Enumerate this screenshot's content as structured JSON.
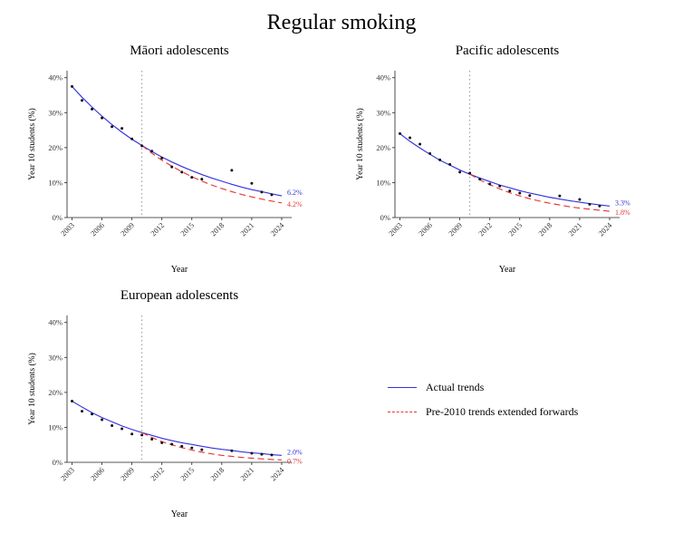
{
  "title": "Regular smoking",
  "legend": {
    "actual": "Actual trends",
    "projected": "Pre-2010 trends extended forwards"
  },
  "colors": {
    "actual": "#3333dd",
    "projected": "#e83535",
    "observed": "#111111",
    "vline": "#888888",
    "axis": "#222222",
    "tick_text": "#333333"
  },
  "axes": {
    "xlabel": "Year",
    "ylabel": "Year 10 students (%)",
    "xticks": [
      2003,
      2006,
      2009,
      2012,
      2015,
      2018,
      2021,
      2024
    ],
    "yticks": [
      0,
      10,
      20,
      30,
      40
    ],
    "ytick_labels": [
      "0%",
      "10%",
      "20%",
      "30%",
      "40%"
    ],
    "xlim": [
      2002.5,
      2025
    ],
    "ylim": [
      0,
      42
    ],
    "vline_x": 2010
  },
  "chart_data": [
    {
      "type": "line",
      "title": "Māori adolescents",
      "series": [
        {
          "name": "actual",
          "kind": "line",
          "x": [
            2003,
            2004,
            2005,
            2006,
            2007,
            2008,
            2009,
            2010,
            2011,
            2012,
            2013,
            2014,
            2015,
            2016,
            2017,
            2018,
            2019,
            2020,
            2021,
            2022,
            2023,
            2024
          ],
          "values": [
            37.5,
            34.4,
            31.6,
            29.0,
            26.6,
            24.4,
            22.4,
            20.6,
            18.9,
            17.3,
            15.9,
            14.6,
            13.4,
            12.3,
            11.3,
            10.4,
            9.5,
            8.7,
            8.0,
            7.4,
            6.8,
            6.2
          ]
        },
        {
          "name": "projected",
          "kind": "line",
          "x": [
            2010,
            2011,
            2012,
            2013,
            2014,
            2015,
            2016,
            2017,
            2018,
            2019,
            2020,
            2021,
            2022,
            2023,
            2024
          ],
          "values": [
            20.6,
            18.4,
            16.4,
            14.7,
            13.1,
            11.7,
            10.4,
            9.3,
            8.3,
            7.4,
            6.6,
            5.9,
            5.3,
            4.7,
            4.2
          ]
        },
        {
          "name": "observed",
          "kind": "scatter",
          "x": [
            2003,
            2004,
            2005,
            2006,
            2007,
            2008,
            2009,
            2010,
            2011,
            2012,
            2013,
            2014,
            2015,
            2016,
            2019,
            2021,
            2022,
            2023
          ],
          "values": [
            37.5,
            33.5,
            31.0,
            28.5,
            26.0,
            25.5,
            22.5,
            20.5,
            19.0,
            17.0,
            14.5,
            13.0,
            11.5,
            11.0,
            13.5,
            9.8,
            7.3,
            6.5
          ]
        }
      ],
      "end_labels": [
        {
          "text": "6.2%",
          "series": "actual",
          "y": 6.2
        },
        {
          "text": "4.2%",
          "series": "projected",
          "y": 4.2
        }
      ]
    },
    {
      "type": "line",
      "title": "Pacific adolescents",
      "series": [
        {
          "name": "actual",
          "kind": "line",
          "x": [
            2003,
            2004,
            2005,
            2006,
            2007,
            2008,
            2009,
            2010,
            2011,
            2012,
            2013,
            2014,
            2015,
            2016,
            2017,
            2018,
            2019,
            2020,
            2021,
            2022,
            2023,
            2024
          ],
          "values": [
            24.0,
            21.8,
            19.9,
            18.1,
            16.4,
            15.0,
            13.6,
            12.4,
            11.3,
            10.3,
            9.3,
            8.5,
            7.7,
            7.0,
            6.4,
            5.8,
            5.3,
            4.8,
            4.4,
            4.0,
            3.6,
            3.3
          ]
        },
        {
          "name": "projected",
          "kind": "line",
          "x": [
            2010,
            2011,
            2012,
            2013,
            2014,
            2015,
            2016,
            2017,
            2018,
            2019,
            2020,
            2021,
            2022,
            2023,
            2024
          ],
          "values": [
            12.4,
            10.8,
            9.4,
            8.2,
            7.1,
            6.2,
            5.4,
            4.7,
            4.1,
            3.6,
            3.1,
            2.7,
            2.4,
            2.1,
            1.8
          ]
        },
        {
          "name": "observed",
          "kind": "scatter",
          "x": [
            2003,
            2004,
            2005,
            2006,
            2007,
            2008,
            2009,
            2010,
            2011,
            2012,
            2013,
            2014,
            2015,
            2016,
            2019,
            2021,
            2022,
            2023
          ],
          "values": [
            24.0,
            22.8,
            21.0,
            18.3,
            16.5,
            15.2,
            13.0,
            12.7,
            11.0,
            9.6,
            9.0,
            7.6,
            7.0,
            6.3,
            6.2,
            5.2,
            3.8,
            3.3
          ]
        }
      ],
      "end_labels": [
        {
          "text": "3.3%",
          "series": "actual",
          "y": 3.3
        },
        {
          "text": "1.8%",
          "series": "projected",
          "y": 1.8
        }
      ]
    },
    {
      "type": "line",
      "title": "European adolescents",
      "series": [
        {
          "name": "actual",
          "kind": "line",
          "x": [
            2003,
            2004,
            2005,
            2006,
            2007,
            2008,
            2009,
            2010,
            2011,
            2012,
            2013,
            2014,
            2015,
            2016,
            2017,
            2018,
            2019,
            2020,
            2021,
            2022,
            2023,
            2024
          ],
          "values": [
            17.5,
            15.8,
            14.2,
            12.8,
            11.6,
            10.4,
            9.4,
            8.5,
            7.7,
            6.9,
            6.2,
            5.6,
            5.1,
            4.6,
            4.1,
            3.7,
            3.4,
            3.0,
            2.7,
            2.5,
            2.2,
            2.0
          ]
        },
        {
          "name": "projected",
          "kind": "line",
          "x": [
            2010,
            2011,
            2012,
            2013,
            2014,
            2015,
            2016,
            2017,
            2018,
            2019,
            2020,
            2021,
            2022,
            2023,
            2024
          ],
          "values": [
            8.5,
            7.1,
            5.9,
            5.0,
            4.2,
            3.5,
            2.9,
            2.4,
            2.0,
            1.7,
            1.4,
            1.2,
            1.0,
            0.8,
            0.7
          ]
        },
        {
          "name": "observed",
          "kind": "scatter",
          "x": [
            2003,
            2004,
            2005,
            2006,
            2007,
            2008,
            2009,
            2010,
            2011,
            2012,
            2013,
            2014,
            2015,
            2016,
            2019,
            2021,
            2022,
            2023
          ],
          "values": [
            17.5,
            14.6,
            13.8,
            12.2,
            10.5,
            9.6,
            8.1,
            7.8,
            6.6,
            5.6,
            5.2,
            4.6,
            4.1,
            3.6,
            3.3,
            2.6,
            2.3,
            2.1
          ]
        }
      ],
      "end_labels": [
        {
          "text": "2.0%",
          "series": "actual",
          "y": 2.0
        },
        {
          "text": "0.7%",
          "series": "projected",
          "y": 0.7
        }
      ]
    }
  ]
}
